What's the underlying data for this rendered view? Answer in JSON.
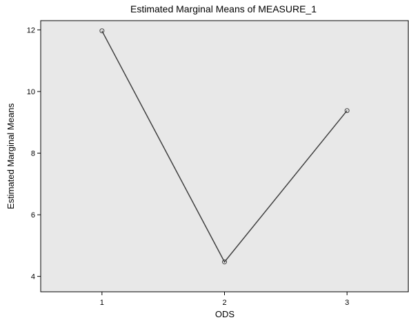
{
  "chart_data": {
    "type": "line",
    "title": "Estimated Marginal Means of MEASURE_1",
    "xlabel": "ODS",
    "ylabel": "Estimated Marginal Means",
    "x": [
      1,
      2,
      3
    ],
    "series": [
      {
        "values": [
          11.97,
          4.47,
          9.38
        ]
      }
    ],
    "xlim": [
      0.5,
      3.5
    ],
    "ylim": [
      3.5,
      12.3
    ],
    "xticks": [
      "1",
      "2",
      "3"
    ],
    "yticks": [
      4,
      6,
      8,
      10,
      12
    ],
    "ytick_labels": [
      "4",
      "6",
      "8",
      "10",
      "12"
    ],
    "grid": false,
    "legend": "none",
    "colors": {
      "plot_bg": "#e8e8e8",
      "line": "#404040",
      "marker": "#404040"
    }
  }
}
